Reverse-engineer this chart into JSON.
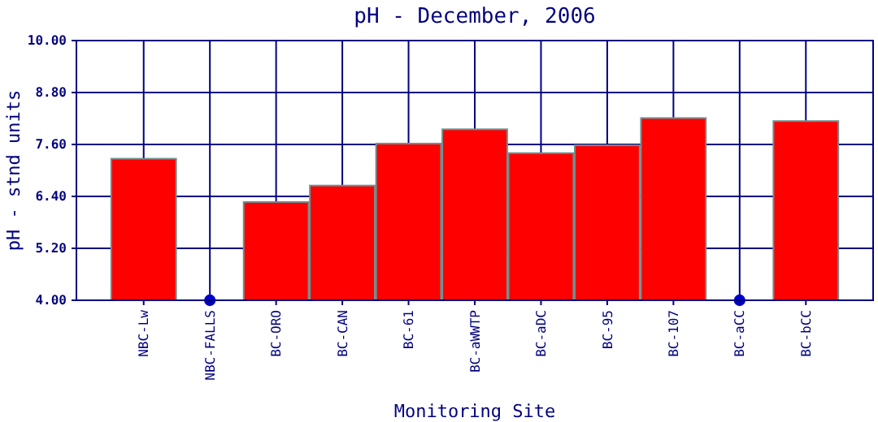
{
  "chart_data": {
    "type": "bar",
    "title": "pH - December, 2006",
    "xlabel": "Monitoring Site",
    "ylabel": "pH - stnd units",
    "categories": [
      "NBC-Lw",
      "NBC-FALLS",
      "BC-ORO",
      "BC-CAN",
      "BC-61",
      "BC-aWWTP",
      "BC-aDC",
      "BC-95",
      "BC-107",
      "BC-aCC",
      "BC-bCC"
    ],
    "series": [
      {
        "color": "#ff0000",
        "values": [
          7.27,
          null,
          6.27,
          6.65,
          7.62,
          7.95,
          7.4,
          7.58,
          8.21,
          null,
          8.14
        ]
      },
      {
        "type": "scatter",
        "color": "#0000cc",
        "x": [
          "NBC-FALLS",
          "BC-aCC"
        ],
        "values": [
          4.0,
          4.0
        ],
        "marker": "circle"
      }
    ],
    "ylim": [
      4,
      10
    ],
    "yticks": [
      {
        "value": 4,
        "label": "4.00"
      },
      {
        "value": 5.2,
        "label": "5.20"
      },
      {
        "value": 6.4,
        "label": "6.40"
      },
      {
        "value": 7.6,
        "label": "7.60"
      },
      {
        "value": 8.8,
        "label": "8.80"
      },
      {
        "value": 10,
        "label": "10.00"
      }
    ],
    "grid": true
  }
}
